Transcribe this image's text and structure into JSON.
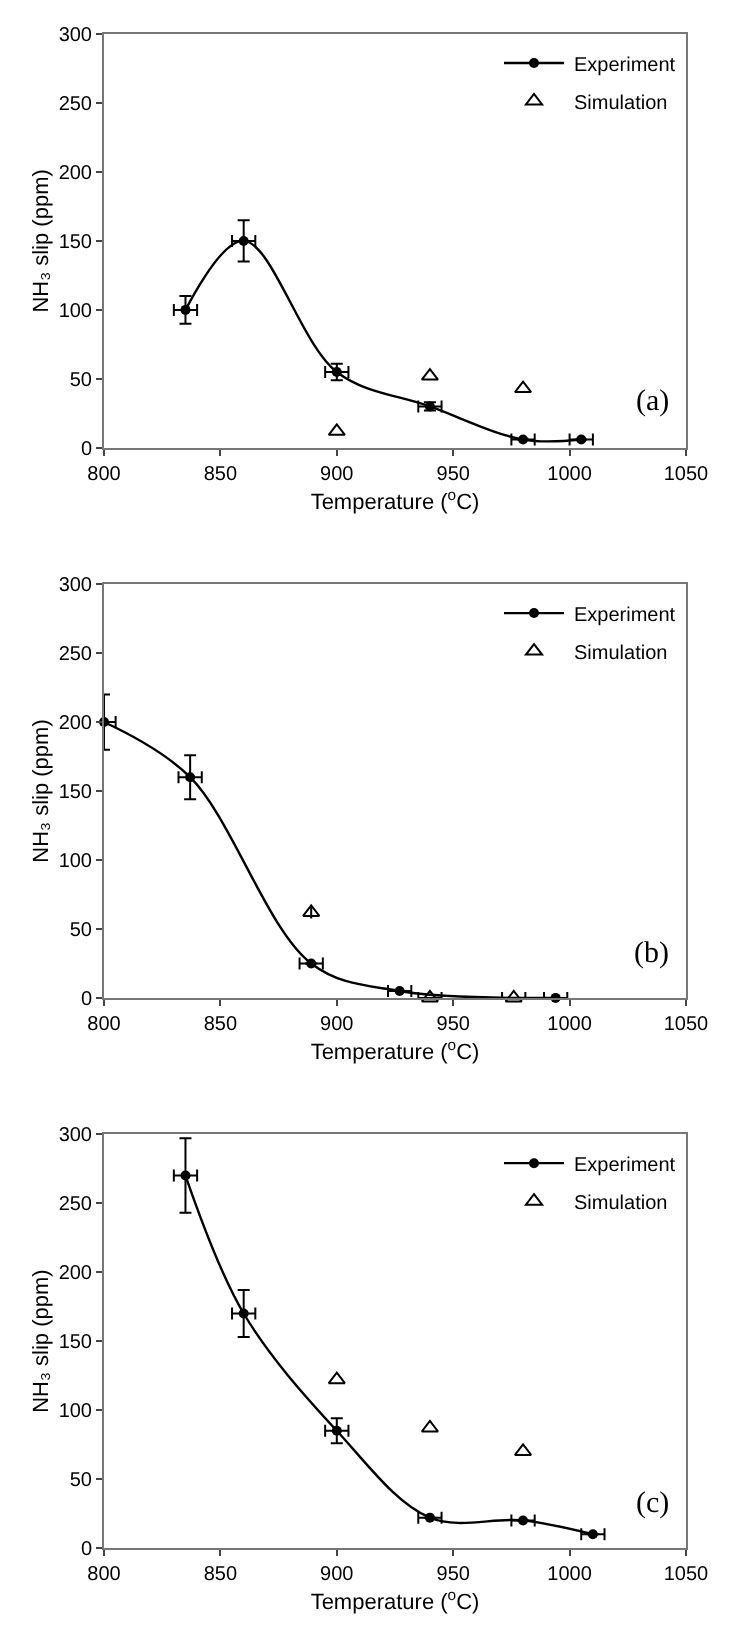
{
  "chart_data": [
    {
      "type": "line",
      "xlabel": "Temperature ($^{o}$C)",
      "ylabel": "NH₃ slip (ppm)",
      "xlim": [
        800,
        1050
      ],
      "ylim": [
        0,
        300
      ],
      "xticks": [
        800,
        850,
        900,
        950,
        1000,
        1050
      ],
      "yticks": [
        0,
        50,
        100,
        150,
        200,
        250,
        300
      ],
      "grid": false,
      "legend": "top right",
      "annotations": [
        "(a)"
      ],
      "series": [
        {
          "name": "Experiment",
          "marker": "circle",
          "color": "#000000",
          "x": [
            835,
            860,
            900,
            940,
            980,
            1005
          ],
          "values": [
            100,
            150,
            55,
            30,
            6,
            6
          ],
          "errors": [
            10,
            15,
            6,
            3,
            null,
            null
          ],
          "xerrors": [
            5,
            5,
            5,
            5,
            5,
            5
          ]
        },
        {
          "name": "Simulation",
          "type": "scatter",
          "marker": "triangle",
          "color": "#000000",
          "x": [
            900,
            940,
            980
          ],
          "values": [
            12,
            52,
            43
          ]
        }
      ]
    },
    {
      "type": "line",
      "xlabel": "Temperature ($^{o}$C)",
      "ylabel": "NH₃ slip (ppm)",
      "xlim": [
        800,
        1050
      ],
      "ylim": [
        0,
        300
      ],
      "xticks": [
        800,
        850,
        900,
        950,
        1000,
        1050
      ],
      "yticks": [
        0,
        50,
        100,
        150,
        200,
        250,
        300
      ],
      "grid": false,
      "legend": "top right",
      "annotations": [
        "(b)"
      ],
      "series": [
        {
          "name": "Experiment",
          "marker": "circle",
          "color": "#000000",
          "x": [
            800,
            837,
            889,
            927,
            994
          ],
          "values": [
            200,
            160,
            25,
            5,
            0
          ],
          "errors": [
            20,
            16,
            null,
            null,
            null
          ],
          "xerrors": [
            [
              800,
              805
            ],
            5,
            5,
            5,
            5
          ]
        },
        {
          "name": "Simulation",
          "type": "scatter",
          "marker": "triangle",
          "color": "#000000",
          "x": [
            889,
            940,
            976
          ],
          "values": [
            62,
            0,
            0
          ],
          "xerrors": [
            null,
            5,
            5
          ]
        }
      ]
    },
    {
      "type": "line",
      "xlabel": "Temperature ($^{o}$C)",
      "ylabel": "NH₃ slip (ppm)",
      "xlim": [
        800,
        1050
      ],
      "ylim": [
        0,
        300
      ],
      "xticks": [
        800,
        850,
        900,
        950,
        1000,
        1050
      ],
      "yticks": [
        0,
        50,
        100,
        150,
        200,
        250,
        300
      ],
      "grid": false,
      "legend": "top right",
      "annotations": [
        "(c)"
      ],
      "series": [
        {
          "name": "Experiment",
          "marker": "circle",
          "color": "#000000",
          "x": [
            835,
            860,
            900,
            940,
            980,
            1010
          ],
          "values": [
            270,
            170,
            85,
            22,
            20,
            10
          ],
          "errors": [
            27,
            17,
            9,
            null,
            null,
            null
          ],
          "xerrors": [
            5,
            5,
            5,
            5,
            5,
            5
          ]
        },
        {
          "name": "Simulation",
          "type": "scatter",
          "marker": "triangle",
          "color": "#000000",
          "x": [
            900,
            940,
            980
          ],
          "values": [
            122,
            87,
            70
          ]
        }
      ]
    }
  ]
}
